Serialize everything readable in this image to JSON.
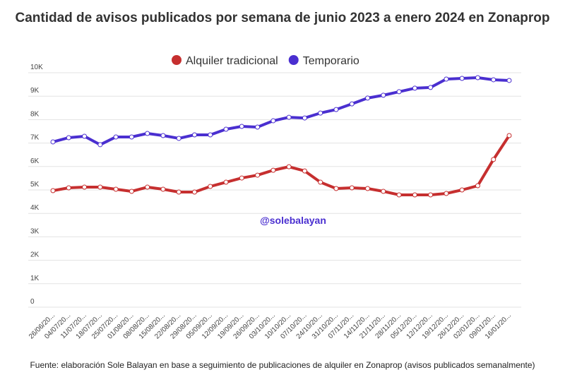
{
  "chart_data": {
    "type": "line",
    "title": "Cantidad de avisos publicados por semana de junio 2023 a enero 2024 en Zonaprop",
    "annotation": "@solebalayan",
    "source": "Fuente: elaboración Sole Balayan en base a seguimiento de publicaciones de alquiler en Zonaprop (avisos publicados semanalmente)",
    "categories": [
      "26/06/20...",
      "04/07/20...",
      "11/07/20...",
      "18/07/20...",
      "25/07/20...",
      "01/08/20...",
      "08/08/20...",
      "15/08/20...",
      "22/08/20...",
      "29/08/20...",
      "05/09/20...",
      "12/09/20...",
      "19/09/20...",
      "26/09/20...",
      "03/10/20...",
      "10/10/20...",
      "07/10/20...",
      "24/10/20...",
      "31/10/20...",
      "07/11/20...",
      "14/11/20...",
      "21/11/20...",
      "28/11/20...",
      "05/12/20...",
      "12/12/20...",
      "19/12/20...",
      "26/12/20...",
      "02/01/20...",
      "09/01/20...",
      "16/01/20..."
    ],
    "series": [
      {
        "name": "Alquiler tradicional",
        "color": "#c62f2f",
        "values": [
          4970,
          5090,
          5120,
          5120,
          5030,
          4940,
          5120,
          5030,
          4910,
          4910,
          5150,
          5330,
          5510,
          5630,
          5840,
          5990,
          5810,
          5330,
          5060,
          5090,
          5060,
          4940,
          4790,
          4790,
          4790,
          4850,
          5000,
          5180,
          6300,
          7320
        ]
      },
      {
        "name": "Temporario",
        "color": "#4a2fd0",
        "values": [
          7050,
          7230,
          7290,
          6930,
          7260,
          7260,
          7410,
          7320,
          7200,
          7350,
          7350,
          7590,
          7710,
          7680,
          7950,
          8100,
          8070,
          8280,
          8430,
          8670,
          8920,
          9040,
          9190,
          9340,
          9370,
          9730,
          9760,
          9790,
          9700,
          9670
        ]
      }
    ],
    "ylim": [
      0,
      10000
    ],
    "yticks": [
      {
        "value": 0,
        "label": "0"
      },
      {
        "value": 1000,
        "label": "1K"
      },
      {
        "value": 2000,
        "label": "2K"
      },
      {
        "value": 3000,
        "label": "3K"
      },
      {
        "value": 4000,
        "label": "4K"
      },
      {
        "value": 5000,
        "label": "5K"
      },
      {
        "value": 6000,
        "label": "6K"
      },
      {
        "value": 7000,
        "label": "7K"
      },
      {
        "value": 8000,
        "label": "8K"
      },
      {
        "value": 9000,
        "label": "9K"
      },
      {
        "value": 10000,
        "label": "10K"
      }
    ],
    "grid": true,
    "legend": "top"
  }
}
